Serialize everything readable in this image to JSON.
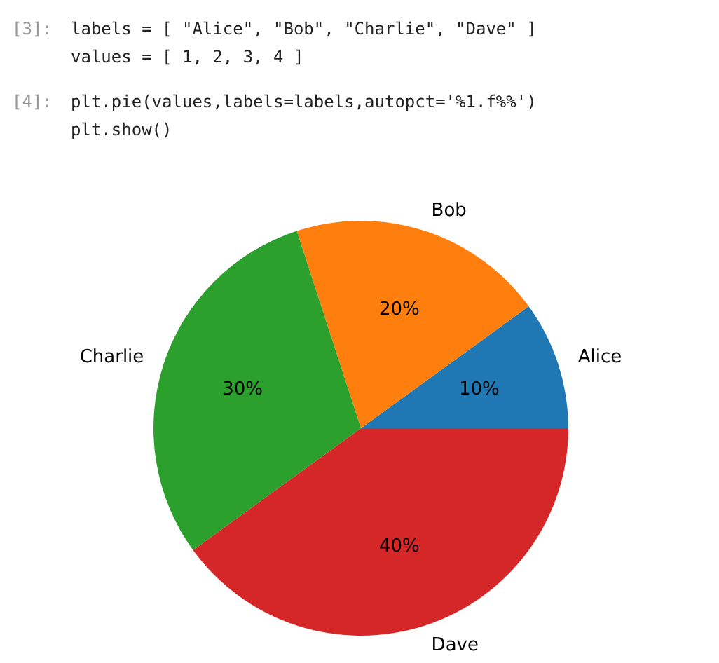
{
  "chart_data": {
    "type": "pie",
    "categories": [
      "Alice",
      "Bob",
      "Charlie",
      "Dave"
    ],
    "values": [
      10,
      20,
      30,
      40
    ],
    "value_labels": [
      "10%",
      "20%",
      "30%",
      "40%"
    ],
    "colors": [
      "#1f77b4",
      "#ff7f0e",
      "#2ca02c",
      "#d62728"
    ],
    "annotations": [
      "[3]:",
      "labels = [ \"Alice\", \"Bob\", \"Charlie\", \"Dave\" ]",
      "values = [ 1, 2, 3, 4 ]",
      "[4]:",
      "plt.pie(values,labels=labels,autopct='%1.f%%')",
      "plt.show()"
    ]
  }
}
